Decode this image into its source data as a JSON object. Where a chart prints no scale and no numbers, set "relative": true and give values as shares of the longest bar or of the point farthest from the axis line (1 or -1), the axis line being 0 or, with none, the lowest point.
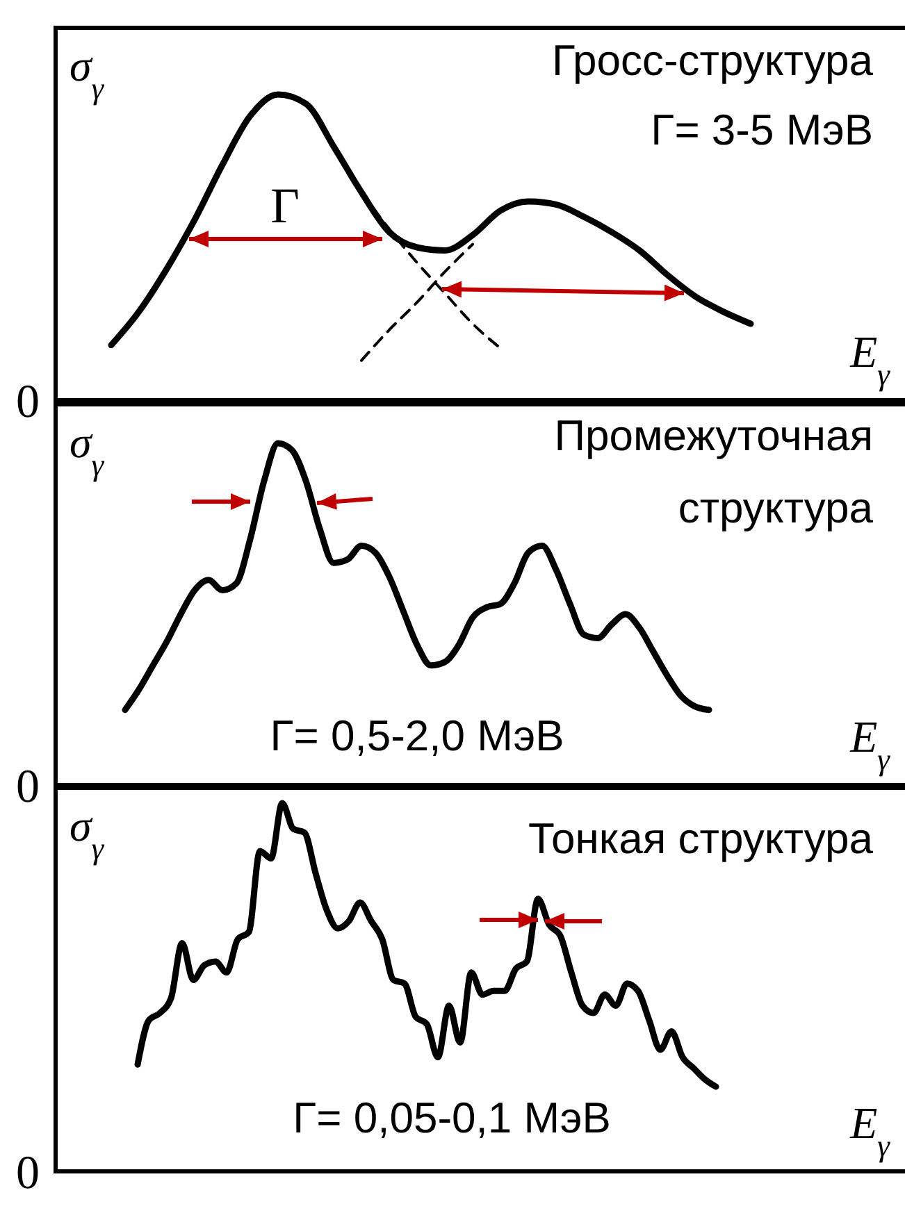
{
  "chart_data": [
    {
      "type": "line",
      "relative": true,
      "title": "Гросс-структура",
      "subtitle": "Γ= 3-5 МэВ",
      "xlabel": "E$_{γ}$",
      "ylabel": "σ$_{γ}$",
      "annotations": [
        "Γ",
        "0"
      ],
      "categories": [
        null,
        null,
        null,
        null,
        null,
        null,
        null,
        null,
        null,
        null,
        null,
        null,
        null,
        null,
        null,
        null,
        null,
        null,
        null,
        null,
        null,
        null,
        null,
        null
      ],
      "series": [
        {
          "color": "#000000",
          "line_style": "solid",
          "values": [
            0.18,
            0.29,
            0.43,
            0.59,
            0.77,
            0.93,
            1.0,
            0.97,
            0.83,
            0.68,
            0.55,
            0.5,
            0.49,
            0.54,
            0.62,
            0.65,
            0.64,
            0.6,
            0.55,
            0.49,
            0.41,
            0.34,
            0.29,
            0.25
          ]
        },
        {
          "color": "#000000",
          "line_style": "dashed",
          "values": [
            null,
            null,
            null,
            null,
            null,
            null,
            null,
            null,
            null,
            0.68,
            0.56,
            0.45,
            0.35,
            0.25,
            0.17,
            null,
            null,
            null,
            null,
            null,
            null,
            null,
            null,
            null
          ]
        },
        {
          "color": "#000000",
          "line_style": "dashed",
          "values": [
            null,
            null,
            null,
            null,
            null,
            null,
            null,
            null,
            null,
            0.13,
            0.23,
            0.32,
            0.42,
            0.51,
            null,
            null,
            null,
            null,
            null,
            null,
            null,
            null,
            null,
            null
          ]
        }
      ]
    },
    {
      "type": "line",
      "relative": true,
      "title": "Промежуточная структура",
      "subtitle": "Γ= 0,5-2,0 МэВ",
      "xlabel": "E$_{γ}$",
      "ylabel": "σ$_{γ}$",
      "annotations": [
        "0"
      ],
      "categories": [
        null,
        null,
        null,
        null,
        null,
        null,
        null,
        null,
        null,
        null,
        null,
        null,
        null,
        null,
        null,
        null,
        null,
        null,
        null,
        null,
        null,
        null,
        null,
        null,
        null,
        null,
        null,
        null,
        null,
        null,
        null,
        null,
        null,
        null,
        null,
        null,
        null,
        null,
        null,
        null,
        null,
        null,
        null
      ],
      "series": [
        {
          "color": "#000000",
          "line_style": "solid",
          "values": [
            0.22,
            0.28,
            0.35,
            0.42,
            0.5,
            0.57,
            0.6,
            0.57,
            0.59,
            0.72,
            0.89,
            1.0,
            0.98,
            0.89,
            0.75,
            0.65,
            0.66,
            0.7,
            0.68,
            0.61,
            0.51,
            0.41,
            0.35,
            0.36,
            0.41,
            0.49,
            0.52,
            0.53,
            0.59,
            0.68,
            0.7,
            0.63,
            0.53,
            0.44,
            0.43,
            0.47,
            0.5,
            0.46,
            0.39,
            0.32,
            0.26,
            0.23,
            0.22
          ]
        }
      ]
    },
    {
      "type": "line",
      "relative": true,
      "title": "Тонкая структура",
      "subtitle": "Γ= 0,05-0,1 МэВ",
      "xlabel": "E$_{γ}$",
      "ylabel": "σ$_{γ}$",
      "annotations": [
        "0"
      ],
      "categories": [
        null,
        null,
        null,
        null,
        null,
        null,
        null,
        null,
        null,
        null,
        null,
        null,
        null,
        null,
        null,
        null,
        null,
        null,
        null,
        null,
        null,
        null,
        null,
        null,
        null,
        null,
        null,
        null,
        null,
        null,
        null,
        null,
        null,
        null,
        null,
        null,
        null,
        null,
        null,
        null,
        null,
        null,
        null,
        null,
        null,
        null,
        null,
        null,
        null,
        null,
        null,
        null,
        null
      ],
      "series": [
        {
          "color": "#000000",
          "line_style": "solid",
          "values": [
            0.29,
            0.41,
            0.43,
            0.47,
            0.62,
            0.52,
            0.56,
            0.57,
            0.54,
            0.63,
            0.65,
            0.87,
            0.85,
            1.0,
            0.93,
            0.92,
            0.81,
            0.71,
            0.66,
            0.68,
            0.73,
            0.68,
            0.63,
            0.52,
            0.51,
            0.42,
            0.4,
            0.31,
            0.45,
            0.35,
            0.54,
            0.48,
            0.49,
            0.49,
            0.55,
            0.57,
            0.74,
            0.67,
            0.64,
            0.54,
            0.45,
            0.43,
            0.48,
            0.45,
            0.51,
            0.49,
            0.41,
            0.33,
            0.38,
            0.31,
            0.28,
            0.25,
            0.23
          ]
        }
      ]
    }
  ]
}
